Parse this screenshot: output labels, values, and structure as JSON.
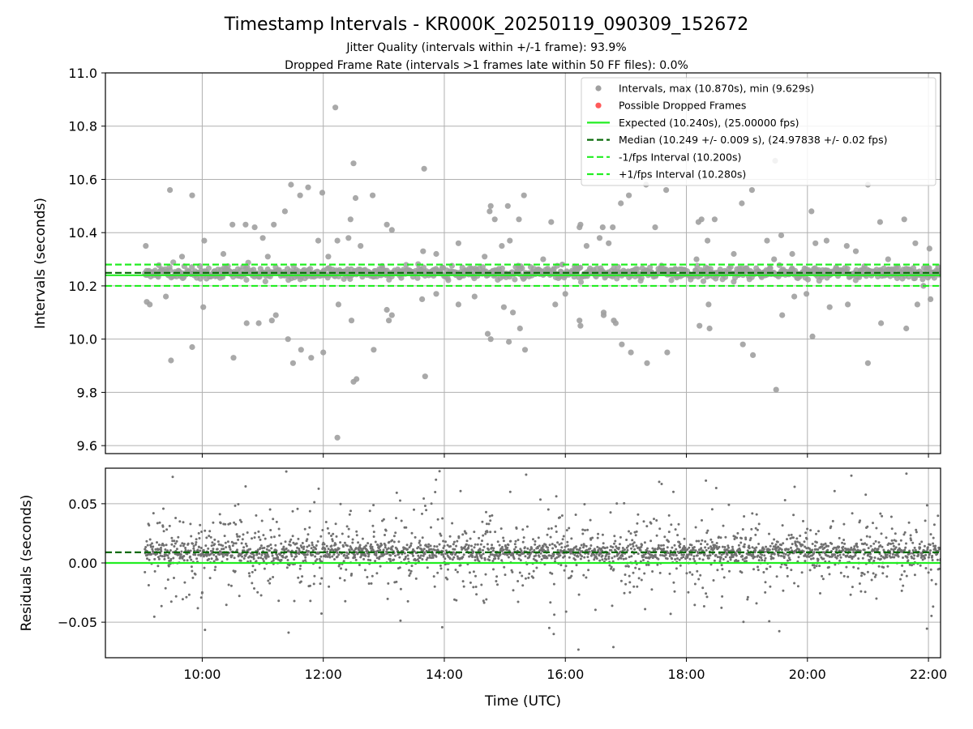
{
  "figure": {
    "title": "Timestamp Intervals - KR000K_20250119_090309_152672",
    "subtitle_line1": "Jitter Quality (intervals within +/-1 frame): 93.9%",
    "subtitle_line2": "Dropped Frame Rate (intervals >1 frames late within 50 FF files): 0.0%",
    "xlabel": "Time (UTC)"
  },
  "colors": {
    "points": "#a0a0a0",
    "residual_points": "#707070",
    "dropped": "#ff5a5a",
    "expected": "#22ee22",
    "median": "#0a6b0a",
    "fps_bounds": "#22ee22",
    "grid": "#b0b0b0"
  },
  "chart_data": [
    {
      "id": "intervals",
      "type": "scatter",
      "ylabel": "Intervals (seconds)",
      "xlim": [
        "08:24",
        "22:12"
      ],
      "ylim": [
        9.57,
        11.0
      ],
      "xticks": [
        "10:00",
        "12:00",
        "14:00",
        "16:00",
        "18:00",
        "20:00",
        "22:00"
      ],
      "yticks": [
        "9.6",
        "9.8",
        "10.0",
        "10.2",
        "10.4",
        "10.6",
        "10.8",
        "11.0"
      ],
      "grid": true,
      "legend_position": "upper-right",
      "legend": [
        {
          "label": "Intervals, max (10.870s), min (9.629s)",
          "kind": "marker"
        },
        {
          "label": "Possible Dropped Frames",
          "kind": "marker-red"
        },
        {
          "label": "Expected (10.240s), (25.00000 fps)",
          "kind": "solid"
        },
        {
          "label": "Median (10.249 +/- 0.009 s), (24.97838 +/- 0.02 fps)",
          "kind": "dashed-dark"
        },
        {
          "label": "-1/fps Interval (10.200s)",
          "kind": "dashed-light"
        },
        {
          "label": "+1/fps Interval (10.280s)",
          "kind": "dashed-light"
        }
      ],
      "reference_lines": {
        "expected": 10.24,
        "median": 10.249,
        "lower": 10.2,
        "upper": 10.28
      },
      "time_range": [
        "09:03",
        "22:12"
      ],
      "outliers": [
        {
          "x": "09:04",
          "y": 10.35
        },
        {
          "x": "09:05",
          "y": 10.14
        },
        {
          "x": "09:08",
          "y": 10.13
        },
        {
          "x": "09:24",
          "y": 10.16
        },
        {
          "x": "09:28",
          "y": 10.56
        },
        {
          "x": "09:29",
          "y": 9.92
        },
        {
          "x": "09:40",
          "y": 10.31
        },
        {
          "x": "09:50",
          "y": 10.54
        },
        {
          "x": "09:50",
          "y": 9.97
        },
        {
          "x": "10:02",
          "y": 10.37
        },
        {
          "x": "10:01",
          "y": 10.12
        },
        {
          "x": "10:21",
          "y": 10.32
        },
        {
          "x": "10:30",
          "y": 10.43
        },
        {
          "x": "10:31",
          "y": 9.93
        },
        {
          "x": "10:43",
          "y": 10.43
        },
        {
          "x": "10:44",
          "y": 10.06
        },
        {
          "x": "10:52",
          "y": 10.42
        },
        {
          "x": "10:56",
          "y": 10.06
        },
        {
          "x": "11:00",
          "y": 10.38
        },
        {
          "x": "11:05",
          "y": 10.31
        },
        {
          "x": "11:09",
          "y": 10.07
        },
        {
          "x": "11:11",
          "y": 10.43
        },
        {
          "x": "11:13",
          "y": 10.09
        },
        {
          "x": "11:22",
          "y": 10.48
        },
        {
          "x": "11:25",
          "y": 10.0
        },
        {
          "x": "11:28",
          "y": 10.58
        },
        {
          "x": "11:30",
          "y": 9.91
        },
        {
          "x": "11:37",
          "y": 10.54
        },
        {
          "x": "11:38",
          "y": 9.96
        },
        {
          "x": "11:45",
          "y": 10.57
        },
        {
          "x": "11:48",
          "y": 9.93
        },
        {
          "x": "11:55",
          "y": 10.37
        },
        {
          "x": "11:59",
          "y": 10.55
        },
        {
          "x": "12:00",
          "y": 9.95
        },
        {
          "x": "12:05",
          "y": 10.31
        },
        {
          "x": "12:12",
          "y": 10.87
        },
        {
          "x": "12:14",
          "y": 10.37
        },
        {
          "x": "12:15",
          "y": 10.13
        },
        {
          "x": "12:14",
          "y": 9.63
        },
        {
          "x": "12:25",
          "y": 10.38
        },
        {
          "x": "12:27",
          "y": 10.45
        },
        {
          "x": "12:28",
          "y": 10.07
        },
        {
          "x": "12:30",
          "y": 10.66
        },
        {
          "x": "12:30",
          "y": 9.84
        },
        {
          "x": "12:32",
          "y": 10.53
        },
        {
          "x": "12:33",
          "y": 9.85
        },
        {
          "x": "12:37",
          "y": 10.35
        },
        {
          "x": "12:49",
          "y": 10.54
        },
        {
          "x": "12:50",
          "y": 9.96
        },
        {
          "x": "13:03",
          "y": 10.43
        },
        {
          "x": "13:03",
          "y": 10.11
        },
        {
          "x": "13:05",
          "y": 10.07
        },
        {
          "x": "13:08",
          "y": 10.41
        },
        {
          "x": "13:08",
          "y": 10.09
        },
        {
          "x": "13:40",
          "y": 10.64
        },
        {
          "x": "13:41",
          "y": 9.86
        },
        {
          "x": "13:39",
          "y": 10.33
        },
        {
          "x": "13:38",
          "y": 10.15
        },
        {
          "x": "13:52",
          "y": 10.32
        },
        {
          "x": "13:52",
          "y": 10.17
        },
        {
          "x": "14:14",
          "y": 10.36
        },
        {
          "x": "14:14",
          "y": 10.13
        },
        {
          "x": "14:30",
          "y": 10.16
        },
        {
          "x": "14:40",
          "y": 10.31
        },
        {
          "x": "14:43",
          "y": 10.02
        },
        {
          "x": "14:45",
          "y": 10.48
        },
        {
          "x": "14:46",
          "y": 10.5
        },
        {
          "x": "14:46",
          "y": 10.0
        },
        {
          "x": "14:50",
          "y": 10.45
        },
        {
          "x": "14:57",
          "y": 10.35
        },
        {
          "x": "14:59",
          "y": 10.12
        },
        {
          "x": "15:03",
          "y": 10.5
        },
        {
          "x": "15:04",
          "y": 9.99
        },
        {
          "x": "15:05",
          "y": 10.37
        },
        {
          "x": "15:08",
          "y": 10.1
        },
        {
          "x": "15:14",
          "y": 10.45
        },
        {
          "x": "15:15",
          "y": 10.04
        },
        {
          "x": "15:19",
          "y": 10.54
        },
        {
          "x": "15:20",
          "y": 9.96
        },
        {
          "x": "15:38",
          "y": 10.3
        },
        {
          "x": "15:46",
          "y": 10.44
        },
        {
          "x": "15:50",
          "y": 10.13
        },
        {
          "x": "15:57",
          "y": 10.28
        },
        {
          "x": "16:00",
          "y": 10.17
        },
        {
          "x": "16:14",
          "y": 10.42
        },
        {
          "x": "16:15",
          "y": 10.43
        },
        {
          "x": "16:14",
          "y": 10.07
        },
        {
          "x": "16:15",
          "y": 10.05
        },
        {
          "x": "16:21",
          "y": 10.35
        },
        {
          "x": "16:34",
          "y": 10.38
        },
        {
          "x": "16:37",
          "y": 10.42
        },
        {
          "x": "16:38",
          "y": 10.1
        },
        {
          "x": "16:38",
          "y": 10.09
        },
        {
          "x": "16:43",
          "y": 10.36
        },
        {
          "x": "16:47",
          "y": 10.42
        },
        {
          "x": "16:48",
          "y": 10.07
        },
        {
          "x": "16:50",
          "y": 10.06
        },
        {
          "x": "16:55",
          "y": 10.51
        },
        {
          "x": "16:56",
          "y": 9.98
        },
        {
          "x": "17:03",
          "y": 10.54
        },
        {
          "x": "17:05",
          "y": 9.95
        },
        {
          "x": "17:20",
          "y": 10.58
        },
        {
          "x": "17:21",
          "y": 9.91
        },
        {
          "x": "17:29",
          "y": 10.42
        },
        {
          "x": "17:40",
          "y": 10.56
        },
        {
          "x": "17:41",
          "y": 9.95
        },
        {
          "x": "18:10",
          "y": 10.3
        },
        {
          "x": "18:12",
          "y": 10.44
        },
        {
          "x": "18:13",
          "y": 10.05
        },
        {
          "x": "18:15",
          "y": 10.45
        },
        {
          "x": "18:21",
          "y": 10.37
        },
        {
          "x": "18:22",
          "y": 10.13
        },
        {
          "x": "18:23",
          "y": 10.04
        },
        {
          "x": "18:28",
          "y": 10.45
        },
        {
          "x": "18:47",
          "y": 10.32
        },
        {
          "x": "18:55",
          "y": 10.51
        },
        {
          "x": "18:56",
          "y": 9.98
        },
        {
          "x": "19:05",
          "y": 10.56
        },
        {
          "x": "19:06",
          "y": 9.94
        },
        {
          "x": "19:20",
          "y": 10.37
        },
        {
          "x": "19:27",
          "y": 10.3
        },
        {
          "x": "19:28",
          "y": 10.67
        },
        {
          "x": "19:29",
          "y": 9.81
        },
        {
          "x": "19:34",
          "y": 10.39
        },
        {
          "x": "19:35",
          "y": 10.09
        },
        {
          "x": "19:45",
          "y": 10.32
        },
        {
          "x": "19:47",
          "y": 10.16
        },
        {
          "x": "19:59",
          "y": 10.17
        },
        {
          "x": "20:04",
          "y": 10.48
        },
        {
          "x": "20:05",
          "y": 10.01
        },
        {
          "x": "20:08",
          "y": 10.36
        },
        {
          "x": "20:19",
          "y": 10.37
        },
        {
          "x": "20:22",
          "y": 10.12
        },
        {
          "x": "20:39",
          "y": 10.35
        },
        {
          "x": "20:40",
          "y": 10.13
        },
        {
          "x": "20:48",
          "y": 10.33
        },
        {
          "x": "21:00",
          "y": 10.58
        },
        {
          "x": "21:00",
          "y": 9.91
        },
        {
          "x": "21:12",
          "y": 10.44
        },
        {
          "x": "21:13",
          "y": 10.06
        },
        {
          "x": "21:20",
          "y": 10.3
        },
        {
          "x": "21:36",
          "y": 10.45
        },
        {
          "x": "21:38",
          "y": 10.04
        },
        {
          "x": "21:47",
          "y": 10.36
        },
        {
          "x": "21:49",
          "y": 10.13
        },
        {
          "x": "21:55",
          "y": 10.2
        },
        {
          "x": "22:01",
          "y": 10.34
        },
        {
          "x": "22:02",
          "y": 10.15
        }
      ]
    },
    {
      "id": "residuals",
      "type": "scatter",
      "ylabel": "Residuals (seconds)",
      "xlim": [
        "08:24",
        "22:12"
      ],
      "ylim": [
        -0.08,
        0.08
      ],
      "xticks": [
        "10:00",
        "12:00",
        "14:00",
        "16:00",
        "18:00",
        "20:00",
        "22:00"
      ],
      "yticks": [
        "−0.05",
        "0.00",
        "0.05"
      ],
      "grid": true,
      "reference_lines": {
        "expected": 0.0,
        "median": 0.009
      },
      "time_range": [
        "09:03",
        "22:12"
      ]
    }
  ]
}
